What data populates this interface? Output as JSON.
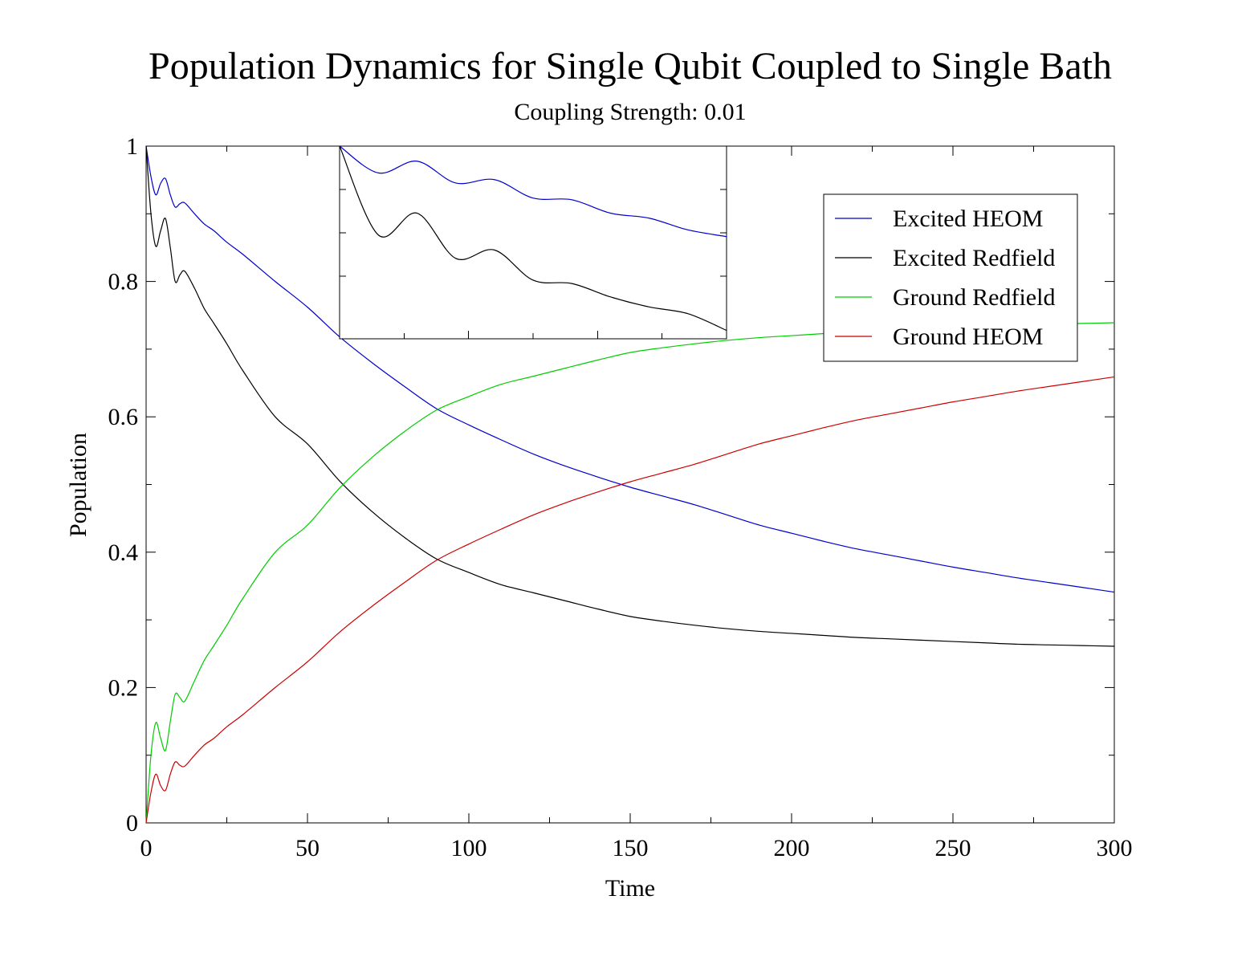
{
  "chart_data": {
    "type": "line",
    "title": "Population Dynamics for Single Qubit Coupled to Single Bath",
    "subtitle": "Coupling Strength: 0.01",
    "xlabel": "Time",
    "ylabel": "Population",
    "xlim": [
      0,
      300
    ],
    "ylim": [
      0,
      1
    ],
    "xticks": [
      0,
      50,
      100,
      150,
      200,
      250,
      300
    ],
    "yticks": [
      0,
      0.2,
      0.4,
      0.6,
      0.8,
      1
    ],
    "xtick_labels": [
      "0",
      "50",
      "100",
      "150",
      "200",
      "250",
      "300"
    ],
    "ytick_labels": [
      "0",
      "0.2",
      "0.4",
      "0.6",
      "0.8",
      "1"
    ],
    "grid": false,
    "legend_position": "top-right",
    "series": [
      {
        "name": "Excited HEOM",
        "color": "#0000cc",
        "x": [
          0,
          1.5,
          3,
          4.5,
          6,
          7.5,
          9,
          10.5,
          12,
          15,
          18,
          21,
          25,
          30,
          40,
          50,
          60,
          70,
          80,
          90,
          100,
          110,
          120,
          130,
          140,
          150,
          160,
          170,
          180,
          190,
          200,
          210,
          220,
          230,
          240,
          250,
          260,
          270,
          280,
          290,
          300
        ],
        "y": [
          1.0,
          0.955,
          0.928,
          0.945,
          0.952,
          0.928,
          0.91,
          0.915,
          0.916,
          0.9,
          0.885,
          0.875,
          0.858,
          0.84,
          0.8,
          0.762,
          0.718,
          0.68,
          0.645,
          0.612,
          0.588,
          0.566,
          0.545,
          0.527,
          0.511,
          0.496,
          0.483,
          0.47,
          0.455,
          0.44,
          0.428,
          0.416,
          0.405,
          0.396,
          0.387,
          0.378,
          0.37,
          0.362,
          0.355,
          0.348,
          0.341
        ]
      },
      {
        "name": "Excited Redfield",
        "color": "#000000",
        "x": [
          0,
          1.5,
          3,
          4.5,
          6,
          7.5,
          9,
          10.5,
          12,
          15,
          18,
          21,
          25,
          30,
          40,
          50,
          60,
          70,
          80,
          90,
          100,
          110,
          120,
          130,
          140,
          150,
          160,
          170,
          180,
          190,
          200,
          210,
          220,
          230,
          240,
          250,
          260,
          270,
          280,
          290,
          300
        ],
        "y": [
          1.0,
          0.9,
          0.852,
          0.875,
          0.893,
          0.85,
          0.8,
          0.81,
          0.815,
          0.79,
          0.76,
          0.738,
          0.708,
          0.668,
          0.6,
          0.56,
          0.505,
          0.46,
          0.422,
          0.39,
          0.37,
          0.352,
          0.34,
          0.328,
          0.316,
          0.305,
          0.298,
          0.292,
          0.287,
          0.283,
          0.28,
          0.277,
          0.274,
          0.272,
          0.27,
          0.268,
          0.266,
          0.264,
          0.263,
          0.262,
          0.261
        ]
      },
      {
        "name": "Ground Redfield",
        "color": "#00cc00",
        "x": [
          0,
          1.5,
          3,
          4.5,
          6,
          7.5,
          9,
          10.5,
          12,
          15,
          18,
          21,
          25,
          30,
          40,
          50,
          60,
          70,
          80,
          90,
          100,
          110,
          120,
          130,
          140,
          150,
          160,
          170,
          180,
          190,
          200,
          210,
          220,
          230,
          240,
          250,
          260,
          270,
          280,
          290,
          300
        ],
        "y": [
          0.0,
          0.1,
          0.148,
          0.125,
          0.107,
          0.15,
          0.19,
          0.185,
          0.18,
          0.21,
          0.24,
          0.262,
          0.292,
          0.332,
          0.4,
          0.44,
          0.495,
          0.54,
          0.578,
          0.61,
          0.63,
          0.648,
          0.66,
          0.672,
          0.684,
          0.695,
          0.702,
          0.708,
          0.713,
          0.717,
          0.72,
          0.723,
          0.726,
          0.728,
          0.73,
          0.732,
          0.734,
          0.736,
          0.737,
          0.738,
          0.739
        ]
      },
      {
        "name": "Ground HEOM",
        "color": "#cc0000",
        "x": [
          0,
          1.5,
          3,
          4.5,
          6,
          7.5,
          9,
          10.5,
          12,
          15,
          18,
          21,
          25,
          30,
          40,
          50,
          60,
          70,
          80,
          90,
          100,
          110,
          120,
          130,
          140,
          150,
          160,
          170,
          180,
          190,
          200,
          210,
          220,
          230,
          240,
          250,
          260,
          270,
          280,
          290,
          300
        ],
        "y": [
          0.0,
          0.045,
          0.072,
          0.055,
          0.048,
          0.072,
          0.09,
          0.085,
          0.084,
          0.1,
          0.115,
          0.125,
          0.142,
          0.16,
          0.2,
          0.238,
          0.282,
          0.32,
          0.355,
          0.388,
          0.412,
          0.434,
          0.455,
          0.473,
          0.489,
          0.504,
          0.517,
          0.53,
          0.545,
          0.56,
          0.572,
          0.584,
          0.595,
          0.604,
          0.613,
          0.622,
          0.63,
          0.638,
          0.645,
          0.652,
          0.659
        ]
      }
    ],
    "inset": {
      "series": [
        {
          "color": "#0000cc",
          "x": [
            0,
            0.1,
            0.2,
            0.3,
            0.4,
            0.5,
            0.6,
            0.7,
            0.8,
            0.9,
            1.0
          ],
          "y": [
            1.0,
            0.84,
            0.91,
            0.78,
            0.8,
            0.69,
            0.68,
            0.6,
            0.57,
            0.5,
            0.46
          ]
        },
        {
          "color": "#000000",
          "x": [
            0,
            0.1,
            0.2,
            0.3,
            0.4,
            0.5,
            0.6,
            0.7,
            0.8,
            0.9,
            1.0
          ],
          "y": [
            1.0,
            0.47,
            0.6,
            0.33,
            0.38,
            0.2,
            0.18,
            0.1,
            0.04,
            0.0,
            -0.1
          ]
        }
      ]
    }
  }
}
